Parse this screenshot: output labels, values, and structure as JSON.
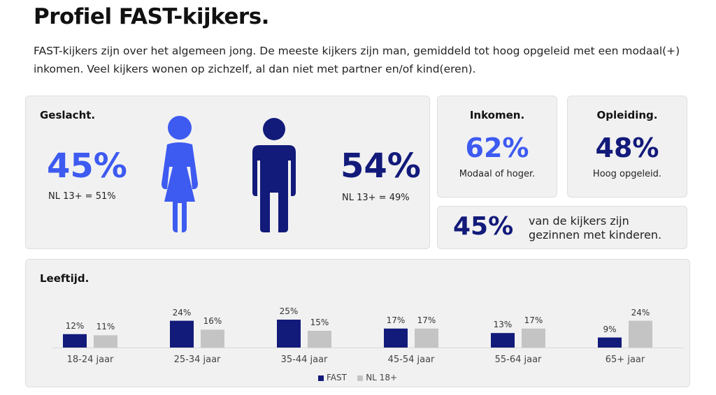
{
  "title": "Profiel FAST-kijkers.",
  "intro": "FAST-kijkers zijn over het algemeen jong. De meeste kijkers zijn man, gemiddeld tot hoog opgeleid met een modaal(+) inkomen. Veel kijkers wonen op zichzelf, al dan niet met partner en/of kind(eren).",
  "colors": {
    "female_blue": "#3d5af1",
    "male_navy": "#121a7a",
    "fast_bar": "#121a7a",
    "nl_bar": "#c4c4c4",
    "accent_blue": "#3d5af1"
  },
  "gender": {
    "label": "Geslacht.",
    "female_pct": "45%",
    "female_nl": "NL 13+ = 51%",
    "male_pct": "54%",
    "male_nl": "NL 13+ = 49%",
    "female_icon": "female-person-icon",
    "male_icon": "male-person-icon"
  },
  "income": {
    "label": "Inkomen.",
    "value": "62%",
    "caption": "Modaal of hoger."
  },
  "education": {
    "label": "Opleiding.",
    "value": "48%",
    "caption": "Hoog opgeleid."
  },
  "family": {
    "value": "45%",
    "line1": "van de kijkers zijn",
    "line2": "gezinnen met kinderen."
  },
  "age": {
    "label": "Leeftijd."
  },
  "chart_data": {
    "type": "bar",
    "title": "Leeftijd.",
    "categories": [
      "18-24 jaar",
      "25-34 jaar",
      "35-44 jaar",
      "45-54 jaar",
      "55-64 jaar",
      "65+ jaar"
    ],
    "series": [
      {
        "name": "FAST",
        "values": [
          12,
          24,
          25,
          17,
          13,
          9
        ],
        "labels": [
          "12%",
          "24%",
          "25%",
          "17%",
          "13%",
          "9%"
        ]
      },
      {
        "name": "NL 18+",
        "values": [
          11,
          16,
          15,
          17,
          17,
          24
        ],
        "labels": [
          "11%",
          "16%",
          "15%",
          "17%",
          "17%",
          "24%"
        ]
      }
    ],
    "ylim": [
      0,
      25
    ],
    "legend": "bottom-center",
    "grid": false
  }
}
